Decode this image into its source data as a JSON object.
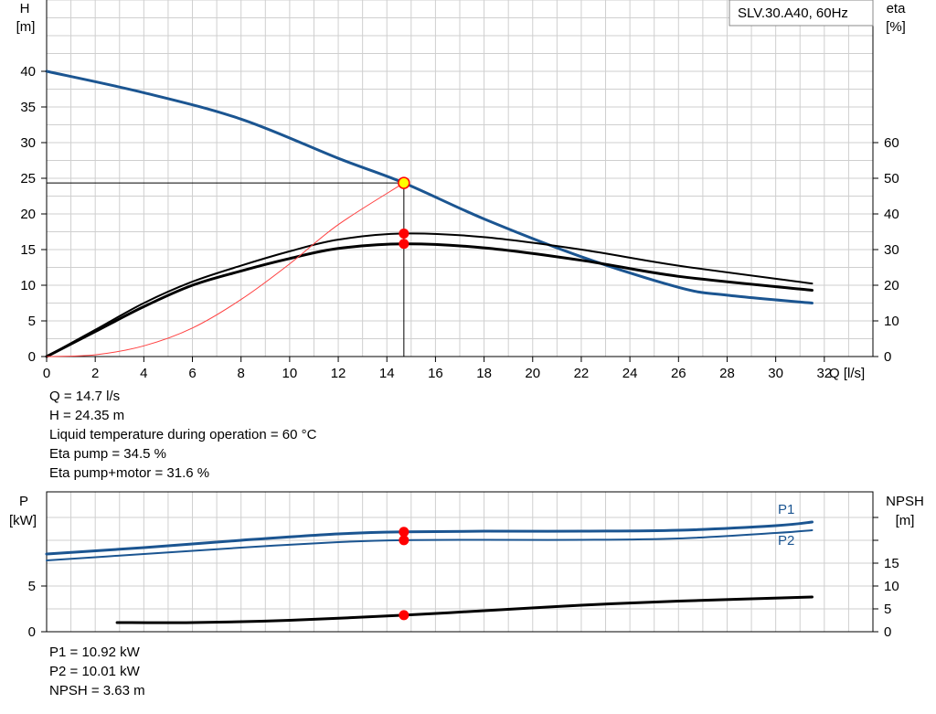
{
  "chart_data": [
    {
      "type": "line",
      "title": "SLV.30.A40, 60Hz",
      "xlabel": "Q [l/s]",
      "ylabel_left_name": "H",
      "ylabel_left_unit": "[m]",
      "ylabel_right_name": "eta",
      "ylabel_right_unit": "[%]",
      "xlim": [
        0,
        34
      ],
      "xticks": [
        0,
        2,
        4,
        6,
        8,
        10,
        12,
        14,
        16,
        18,
        20,
        22,
        24,
        26,
        28,
        30,
        32
      ],
      "ylim_left": [
        0,
        40
      ],
      "yticks_left": [
        0,
        5,
        10,
        15,
        20,
        25,
        30,
        35,
        40
      ],
      "ylim_right": [
        0,
        80
      ],
      "yticks_right": [
        0,
        10,
        20,
        30,
        40,
        50,
        60
      ],
      "grid": true,
      "series": [
        {
          "axis": "left",
          "color": "#1b5591",
          "x": [
            0,
            4,
            8,
            12,
            14.7,
            18,
            22,
            26,
            28,
            31.5
          ],
          "values": [
            40,
            37,
            33.3,
            27.8,
            24.35,
            19.3,
            14,
            9.7,
            8.6,
            7.5
          ]
        },
        {
          "axis": "right",
          "color": "#000000",
          "x": [
            0,
            2,
            4,
            6,
            8,
            10,
            12,
            14.7,
            18,
            22,
            26,
            31.5
          ],
          "values": [
            0,
            7.5,
            15,
            21,
            25.5,
            29.5,
            32.8,
            34.5,
            33.5,
            30,
            25.5,
            20.5
          ]
        },
        {
          "axis": "right",
          "color": "#000000",
          "x": [
            0,
            2,
            4,
            6,
            8,
            10,
            12,
            14.7,
            18,
            22,
            26,
            31.5
          ],
          "values": [
            0,
            7,
            14,
            20,
            24,
            27.5,
            30.3,
            31.6,
            30.5,
            27,
            22.5,
            18.6
          ]
        },
        {
          "axis": "right",
          "color": "#ff4040",
          "x": [
            0,
            2,
            4,
            6,
            8,
            10,
            12,
            14.7
          ],
          "values": [
            0,
            0.5,
            3,
            8,
            16,
            26,
            37,
            48.7
          ]
        }
      ],
      "operating_point": {
        "x": 14.7,
        "y": 24.35,
        "eta_pump": 34.5,
        "eta_pump_motor": 31.6
      }
    },
    {
      "type": "line",
      "xlim": [
        0,
        34
      ],
      "ylabel_left_name": "P",
      "ylabel_left_unit": "[kW]",
      "ylabel_right_name": "NPSH",
      "ylabel_right_unit": "[m]",
      "ylim_left": [
        0,
        14
      ],
      "yticks_left": [
        0,
        5
      ],
      "ylim_right": [
        0,
        28
      ],
      "yticks_right": [
        0,
        5,
        10,
        15
      ],
      "grid": true,
      "series": [
        {
          "name": "P1",
          "axis": "left",
          "color": "#1b5591",
          "x": [
            0,
            4,
            8,
            12,
            14.7,
            18,
            22,
            26,
            30,
            31.5
          ],
          "values": [
            8.5,
            9.2,
            10.0,
            10.7,
            10.92,
            11.0,
            11.0,
            11.1,
            11.6,
            12.0
          ]
        },
        {
          "name": "P2",
          "axis": "left",
          "color": "#1b5591",
          "x": [
            0,
            4,
            8,
            12,
            14.7,
            18,
            22,
            26,
            30,
            31.5
          ],
          "values": [
            7.8,
            8.5,
            9.2,
            9.8,
            10.01,
            10.05,
            10.05,
            10.2,
            10.8,
            11.1
          ]
        },
        {
          "name": "NPSH",
          "axis": "right",
          "color": "#000000",
          "x": [
            2.9,
            6,
            10,
            14.7,
            18,
            22,
            26,
            31.5
          ],
          "values": [
            2.0,
            2.0,
            2.5,
            3.63,
            4.6,
            5.8,
            6.7,
            7.6
          ]
        }
      ],
      "operating_point": {
        "x": 14.7,
        "p1": 10.92,
        "p2": 10.01,
        "npsh": 3.63
      }
    }
  ],
  "info_top": {
    "q": "Q = 14.7 l/s",
    "h": "H = 24.35 m",
    "temp": "Liquid temperature during operation = 60 °C",
    "eta_pump": "Eta pump = 34.5 %",
    "eta_pump_motor": "Eta pump+motor = 31.6 %"
  },
  "info_bottom": {
    "p1": "P1 = 10.92 kW",
    "p2": "P2 = 10.01 kW",
    "npsh": "NPSH = 3.63 m"
  }
}
